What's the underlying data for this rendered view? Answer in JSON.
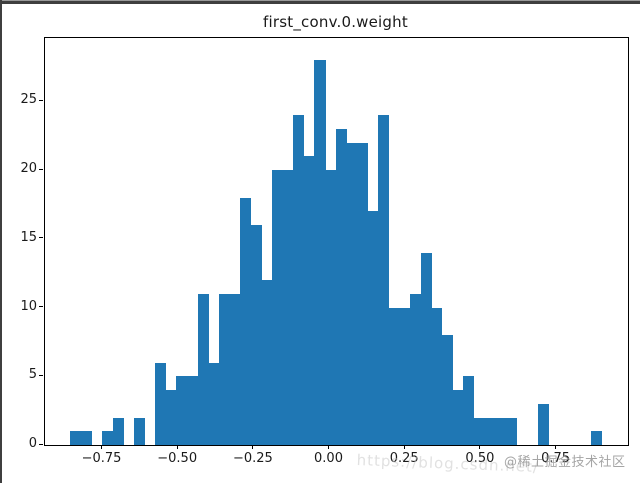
{
  "window": {
    "frame_color": "#3f3f3f",
    "frame_highlight": "#9a9a9a",
    "background": "#ffffff"
  },
  "chart_data": {
    "type": "bar",
    "subtype": "histogram",
    "title": "first_conv.0.weight",
    "xlabel": "",
    "ylabel": "",
    "bar_color": "#1f77b4",
    "axis_color": "#000000",
    "text_color": "#1a1a1a",
    "grid": false,
    "legend": null,
    "bin_start": -0.857,
    "bin_width": 0.0351,
    "counts": [
      1,
      1,
      0,
      1,
      2,
      0,
      2,
      0,
      6,
      4,
      5,
      5,
      11,
      6,
      11,
      11,
      18,
      16,
      12,
      20,
      20,
      24,
      21,
      28,
      20,
      23,
      22,
      22,
      17,
      24,
      10,
      10,
      11,
      14,
      10,
      8,
      4,
      5,
      2,
      2,
      2,
      2,
      0,
      0,
      3,
      0,
      0,
      0,
      0,
      1
    ],
    "xlim": [
      -0.94,
      0.986
    ],
    "ylim": [
      0,
      29.6
    ],
    "x_ticks": [
      -0.75,
      -0.5,
      -0.25,
      0,
      0.25,
      0.5,
      0.75
    ],
    "x_tick_labels": [
      "−0.75",
      "−0.50",
      "−0.25",
      "0.00",
      "0.25",
      "0.50",
      "0.75"
    ],
    "y_ticks": [
      0,
      5,
      10,
      15,
      20,
      25
    ],
    "y_tick_labels": [
      "0",
      "5",
      "10",
      "15",
      "20",
      "25"
    ]
  },
  "watermarks": {
    "site_badge": "@稀土掘金技术社区",
    "faint_url": "https://blog.csdn.net/"
  }
}
